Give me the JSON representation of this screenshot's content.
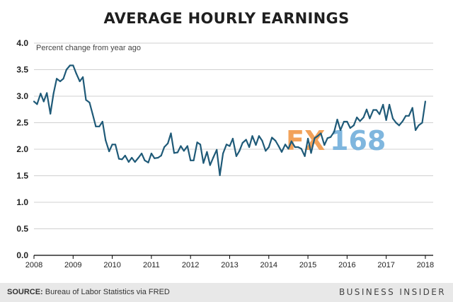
{
  "title": "AVERAGE HOURLY EARNINGS",
  "footer": {
    "source_label": "SOURCE:",
    "source_text": " Bureau of Labor Statistics via FRED",
    "brand": "BUSINESS INSIDER"
  },
  "watermark": {
    "prefix": "FX",
    "number": "168"
  },
  "colors": {
    "line": "#1f5a78",
    "grid": "#d0d0d0",
    "axis": "#000000"
  },
  "chart_data": {
    "type": "line",
    "title": "AVERAGE HOURLY EARNINGS",
    "annotation": "Percent change from year ago",
    "xlabel": "",
    "ylabel": "",
    "xlim": [
      2008,
      2018.2
    ],
    "ylim": [
      0,
      4
    ],
    "yticks": [
      0.0,
      0.5,
      1.0,
      1.5,
      2.0,
      2.5,
      3.0,
      3.5,
      4.0
    ],
    "ytick_labels": [
      "0.0",
      "0.5",
      "1.0",
      "1.5",
      "2.0",
      "2.5",
      "3.0",
      "3.5",
      "4.0"
    ],
    "xticks": [
      2008,
      2009,
      2010,
      2011,
      2012,
      2013,
      2014,
      2015,
      2016,
      2017,
      2018
    ],
    "xtick_labels": [
      "2008",
      "2009",
      "2010",
      "2011",
      "2012",
      "2013",
      "2014",
      "2015",
      "2016",
      "2017",
      "2018"
    ],
    "grid": true,
    "series": [
      {
        "x": [
          2008.0,
          2008.08,
          2008.17,
          2008.25,
          2008.33,
          2008.42,
          2008.5,
          2008.58,
          2008.67,
          2008.75,
          2008.83,
          2008.92,
          2009.0,
          2009.08,
          2009.17,
          2009.25,
          2009.33,
          2009.42,
          2009.5,
          2009.58,
          2009.67,
          2009.75,
          2009.83,
          2009.92,
          2010.0,
          2010.08,
          2010.17,
          2010.25,
          2010.33,
          2010.42,
          2010.5,
          2010.58,
          2010.67,
          2010.75,
          2010.83,
          2010.92,
          2011.0,
          2011.08,
          2011.17,
          2011.25,
          2011.33,
          2011.42,
          2011.5,
          2011.58,
          2011.67,
          2011.75,
          2011.83,
          2011.92,
          2012.0,
          2012.08,
          2012.17,
          2012.25,
          2012.33,
          2012.42,
          2012.5,
          2012.58,
          2012.67,
          2012.75,
          2012.83,
          2012.92,
          2013.0,
          2013.08,
          2013.17,
          2013.25,
          2013.33,
          2013.42,
          2013.5,
          2013.58,
          2013.67,
          2013.75,
          2013.83,
          2013.92,
          2014.0,
          2014.08,
          2014.17,
          2014.25,
          2014.33,
          2014.42,
          2014.5,
          2014.58,
          2014.67,
          2014.75,
          2014.83,
          2014.92,
          2015.0,
          2015.08,
          2015.17,
          2015.25,
          2015.33,
          2015.42,
          2015.5,
          2015.58,
          2015.67,
          2015.75,
          2015.83,
          2015.92,
          2016.0,
          2016.08,
          2016.17,
          2016.25,
          2016.33,
          2016.42,
          2016.5,
          2016.58,
          2016.67,
          2016.75,
          2016.83,
          2016.92,
          2017.0,
          2017.08,
          2017.17,
          2017.25,
          2017.33,
          2017.42,
          2017.5,
          2017.58,
          2017.67,
          2017.75,
          2017.83,
          2017.92,
          2018.0
        ],
        "y": [
          2.9,
          2.85,
          3.05,
          2.9,
          3.06,
          2.67,
          3.05,
          3.33,
          3.28,
          3.33,
          3.5,
          3.58,
          3.58,
          3.43,
          3.28,
          3.36,
          2.93,
          2.88,
          2.66,
          2.43,
          2.43,
          2.52,
          2.17,
          1.96,
          2.09,
          2.09,
          1.82,
          1.81,
          1.88,
          1.76,
          1.84,
          1.76,
          1.84,
          1.92,
          1.79,
          1.75,
          1.92,
          1.83,
          1.84,
          1.88,
          2.04,
          2.11,
          2.3,
          1.93,
          1.94,
          2.06,
          1.97,
          2.06,
          1.79,
          1.79,
          2.13,
          2.09,
          1.74,
          1.95,
          1.7,
          1.84,
          1.99,
          1.51,
          1.92,
          2.09,
          2.06,
          2.2,
          1.87,
          1.97,
          2.12,
          2.18,
          2.04,
          2.25,
          2.08,
          2.25,
          2.16,
          1.97,
          2.04,
          2.22,
          2.16,
          2.06,
          1.95,
          2.09,
          2.01,
          2.15,
          2.04,
          2.04,
          2.01,
          1.87,
          2.2,
          1.93,
          2.21,
          2.25,
          2.3,
          2.08,
          2.21,
          2.23,
          2.33,
          2.56,
          2.36,
          2.52,
          2.52,
          2.4,
          2.45,
          2.6,
          2.53,
          2.6,
          2.75,
          2.58,
          2.74,
          2.74,
          2.66,
          2.84,
          2.55,
          2.84,
          2.58,
          2.5,
          2.45,
          2.53,
          2.63,
          2.63,
          2.78,
          2.36,
          2.45,
          2.5,
          2.9
        ]
      }
    ]
  }
}
